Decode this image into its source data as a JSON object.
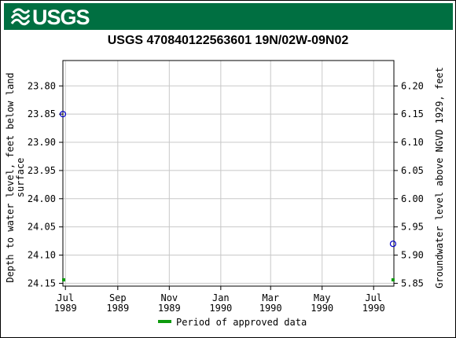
{
  "banner": {
    "logo_text": "USGS",
    "color": "#006f41"
  },
  "chart_data": {
    "type": "scatter",
    "title": "USGS 470840122563601 19N/02W-09N02",
    "ylabel_left": "Depth to water level, feet below land surface",
    "ylabel_left_lines": [
      "Depth to water level, feet below land",
      "surface"
    ],
    "ylabel_right": "Groundwater level above NGVD 1929, feet",
    "x_ticks": [
      {
        "line1": "Jul",
        "line2": "1989",
        "t": 0
      },
      {
        "line1": "Sep",
        "line2": "1989",
        "t": 62
      },
      {
        "line1": "Nov",
        "line2": "1989",
        "t": 123
      },
      {
        "line1": "Jan",
        "line2": "1990",
        "t": 184
      },
      {
        "line1": "Mar",
        "line2": "1990",
        "t": 243
      },
      {
        "line1": "May",
        "line2": "1990",
        "t": 304
      },
      {
        "line1": "Jul",
        "line2": "1990",
        "t": 365
      }
    ],
    "x_range_days": [
      -3,
      389
    ],
    "x_origin_date": "1989-07-01",
    "y_left_ticks": [
      "23.80",
      "23.85",
      "23.90",
      "23.95",
      "24.00",
      "24.05",
      "24.10",
      "24.15"
    ],
    "y_left_range": [
      23.755,
      24.155
    ],
    "y_right_ticks": [
      "6.20",
      "6.15",
      "6.10",
      "6.05",
      "6.00",
      "5.95",
      "5.90",
      "5.85"
    ],
    "points": [
      {
        "date": "1989-06-28",
        "t": -3,
        "value": 23.85
      },
      {
        "date": "1990-07-24",
        "t": 388,
        "value": 24.08
      }
    ],
    "approved_marks": [
      {
        "t": -3
      },
      {
        "t": 388
      }
    ],
    "point_color": "#0000cc",
    "approved_color": "#0e9b0e",
    "legend": {
      "label": "Period of approved data",
      "position": "bottom"
    },
    "grid": true
  }
}
